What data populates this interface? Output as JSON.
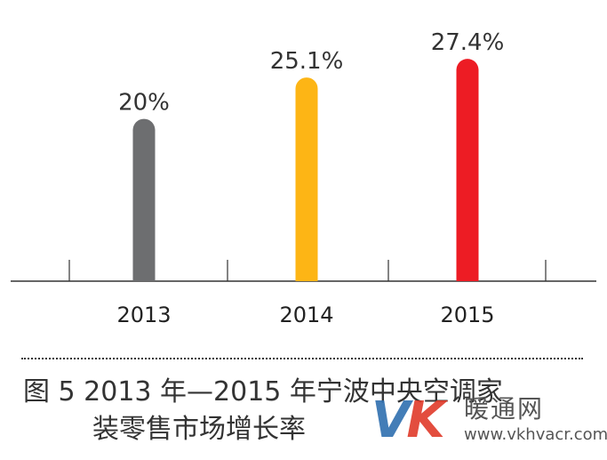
{
  "chart_data": {
    "type": "bar",
    "categories": [
      "2013",
      "2014",
      "2015"
    ],
    "values": [
      20,
      25.1,
      27.4
    ],
    "value_labels": [
      "20%",
      "25.1%",
      "27.4%"
    ],
    "colors": [
      "#6d6e70",
      "#fdb515",
      "#ed1c24"
    ],
    "ylim": [
      0,
      30
    ],
    "grid": false,
    "legend": "none",
    "xlabel": "",
    "ylabel": ""
  },
  "caption": {
    "line1": "图 5  2013 年—2015 年宁波中央空调家",
    "line2": "装零售市场增长率"
  },
  "watermark": {
    "mark": "VK",
    "name": "暖通网",
    "url": "www.vkhvacr.com"
  },
  "colors": {
    "axis": "#333333",
    "text": "#333333"
  }
}
